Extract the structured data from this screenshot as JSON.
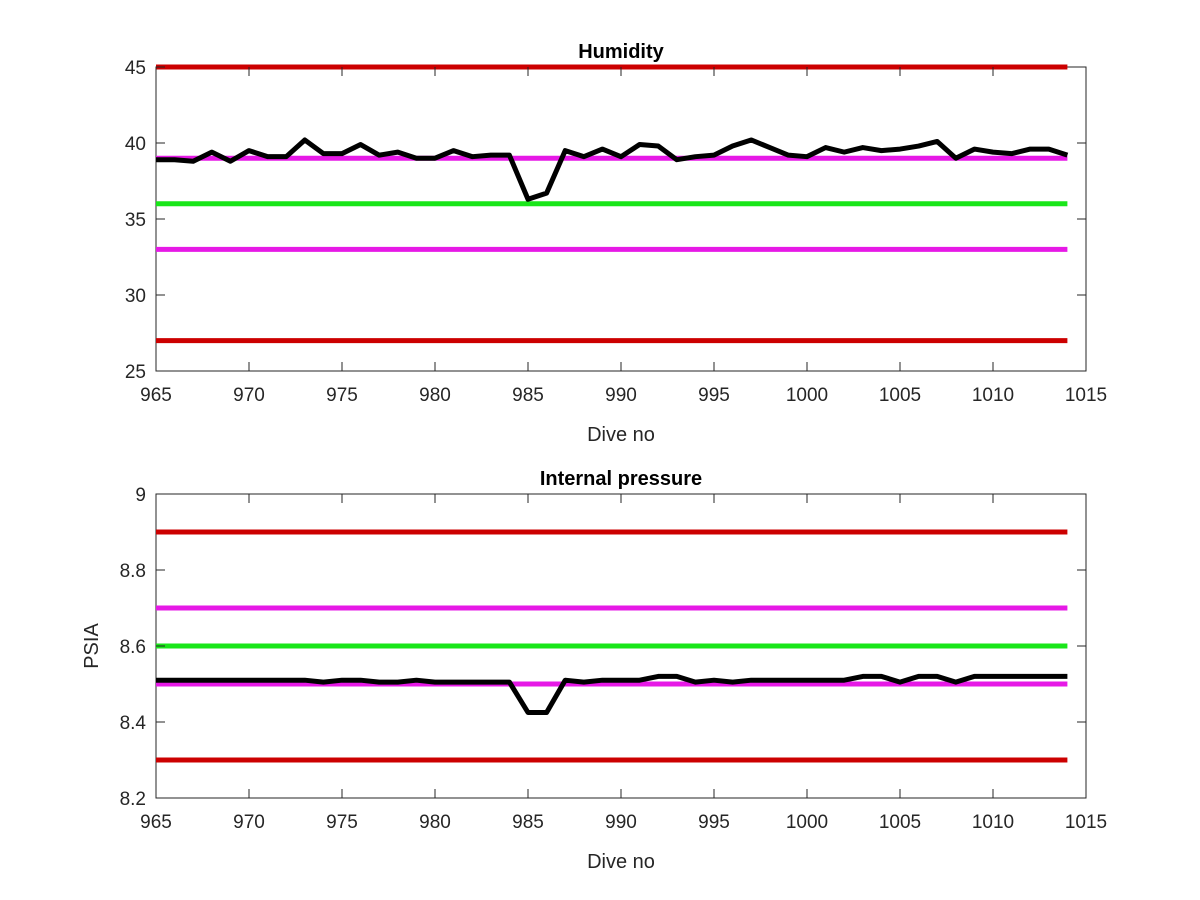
{
  "chart_data": [
    {
      "type": "line",
      "title": "Humidity",
      "xlabel": "Dive no",
      "ylabel": "",
      "xlim": [
        965,
        1015
      ],
      "ylim": [
        25,
        45
      ],
      "xticks": [
        965,
        970,
        975,
        980,
        985,
        990,
        995,
        1000,
        1005,
        1010,
        1015
      ],
      "yticks": [
        25,
        30,
        35,
        40,
        45
      ],
      "grid": false,
      "reference_lines": [
        {
          "y": 45,
          "color": "#cc0000"
        },
        {
          "y": 39,
          "color": "#e619e6"
        },
        {
          "y": 36,
          "color": "#19e619"
        },
        {
          "y": 33,
          "color": "#e619e6"
        },
        {
          "y": 27,
          "color": "#cc0000"
        }
      ],
      "series": [
        {
          "color": "#000000",
          "x": [
            965,
            966,
            967,
            968,
            969,
            970,
            971,
            972,
            973,
            974,
            975,
            976,
            977,
            978,
            979,
            980,
            981,
            982,
            983,
            984,
            985,
            986,
            987,
            988,
            989,
            990,
            991,
            992,
            993,
            994,
            995,
            996,
            997,
            998,
            999,
            1000,
            1001,
            1002,
            1003,
            1004,
            1005,
            1006,
            1007,
            1008,
            1009,
            1010,
            1011,
            1012,
            1013,
            1014
          ],
          "y": [
            38.9,
            38.9,
            38.8,
            39.4,
            38.8,
            39.5,
            39.1,
            39.1,
            40.2,
            39.3,
            39.3,
            39.9,
            39.2,
            39.4,
            39.0,
            39.0,
            39.5,
            39.1,
            39.2,
            39.2,
            36.3,
            36.7,
            39.5,
            39.1,
            39.6,
            39.1,
            39.9,
            39.8,
            38.9,
            39.1,
            39.2,
            39.8,
            40.2,
            39.7,
            39.2,
            39.1,
            39.7,
            39.4,
            39.7,
            39.5,
            39.6,
            39.8,
            40.1,
            39.0,
            39.6,
            39.4,
            39.3,
            39.6,
            39.6,
            39.2
          ]
        }
      ]
    },
    {
      "type": "line",
      "title": "Internal pressure",
      "xlabel": "Dive no",
      "ylabel": "PSIA",
      "xlim": [
        965,
        1015
      ],
      "ylim": [
        8.2,
        9.0
      ],
      "xticks": [
        965,
        970,
        975,
        980,
        985,
        990,
        995,
        1000,
        1005,
        1010,
        1015
      ],
      "yticks": [
        8.2,
        8.4,
        8.6,
        8.8,
        9.0
      ],
      "ytick_labels": [
        "8.2",
        "8.4",
        "8.6",
        "8.8",
        "9"
      ],
      "grid": false,
      "reference_lines": [
        {
          "y": 8.9,
          "color": "#cc0000"
        },
        {
          "y": 8.7,
          "color": "#e619e6"
        },
        {
          "y": 8.6,
          "color": "#19e619"
        },
        {
          "y": 8.5,
          "color": "#e619e6"
        },
        {
          "y": 8.3,
          "color": "#cc0000"
        }
      ],
      "series": [
        {
          "color": "#000000",
          "x": [
            965,
            966,
            967,
            968,
            969,
            970,
            971,
            972,
            973,
            974,
            975,
            976,
            977,
            978,
            979,
            980,
            981,
            982,
            983,
            984,
            985,
            986,
            987,
            988,
            989,
            990,
            991,
            992,
            993,
            994,
            995,
            996,
            997,
            998,
            999,
            1000,
            1001,
            1002,
            1003,
            1004,
            1005,
            1006,
            1007,
            1008,
            1009,
            1010,
            1011,
            1012,
            1013,
            1014
          ],
          "y": [
            8.51,
            8.51,
            8.51,
            8.51,
            8.51,
            8.51,
            8.51,
            8.51,
            8.51,
            8.505,
            8.51,
            8.51,
            8.505,
            8.505,
            8.51,
            8.505,
            8.505,
            8.505,
            8.505,
            8.505,
            8.425,
            8.425,
            8.51,
            8.505,
            8.51,
            8.51,
            8.51,
            8.52,
            8.52,
            8.505,
            8.51,
            8.505,
            8.51,
            8.51,
            8.51,
            8.51,
            8.51,
            8.51,
            8.52,
            8.52,
            8.505,
            8.52,
            8.52,
            8.505,
            8.52,
            8.52,
            8.52,
            8.52,
            8.52,
            8.52
          ]
        }
      ]
    }
  ]
}
